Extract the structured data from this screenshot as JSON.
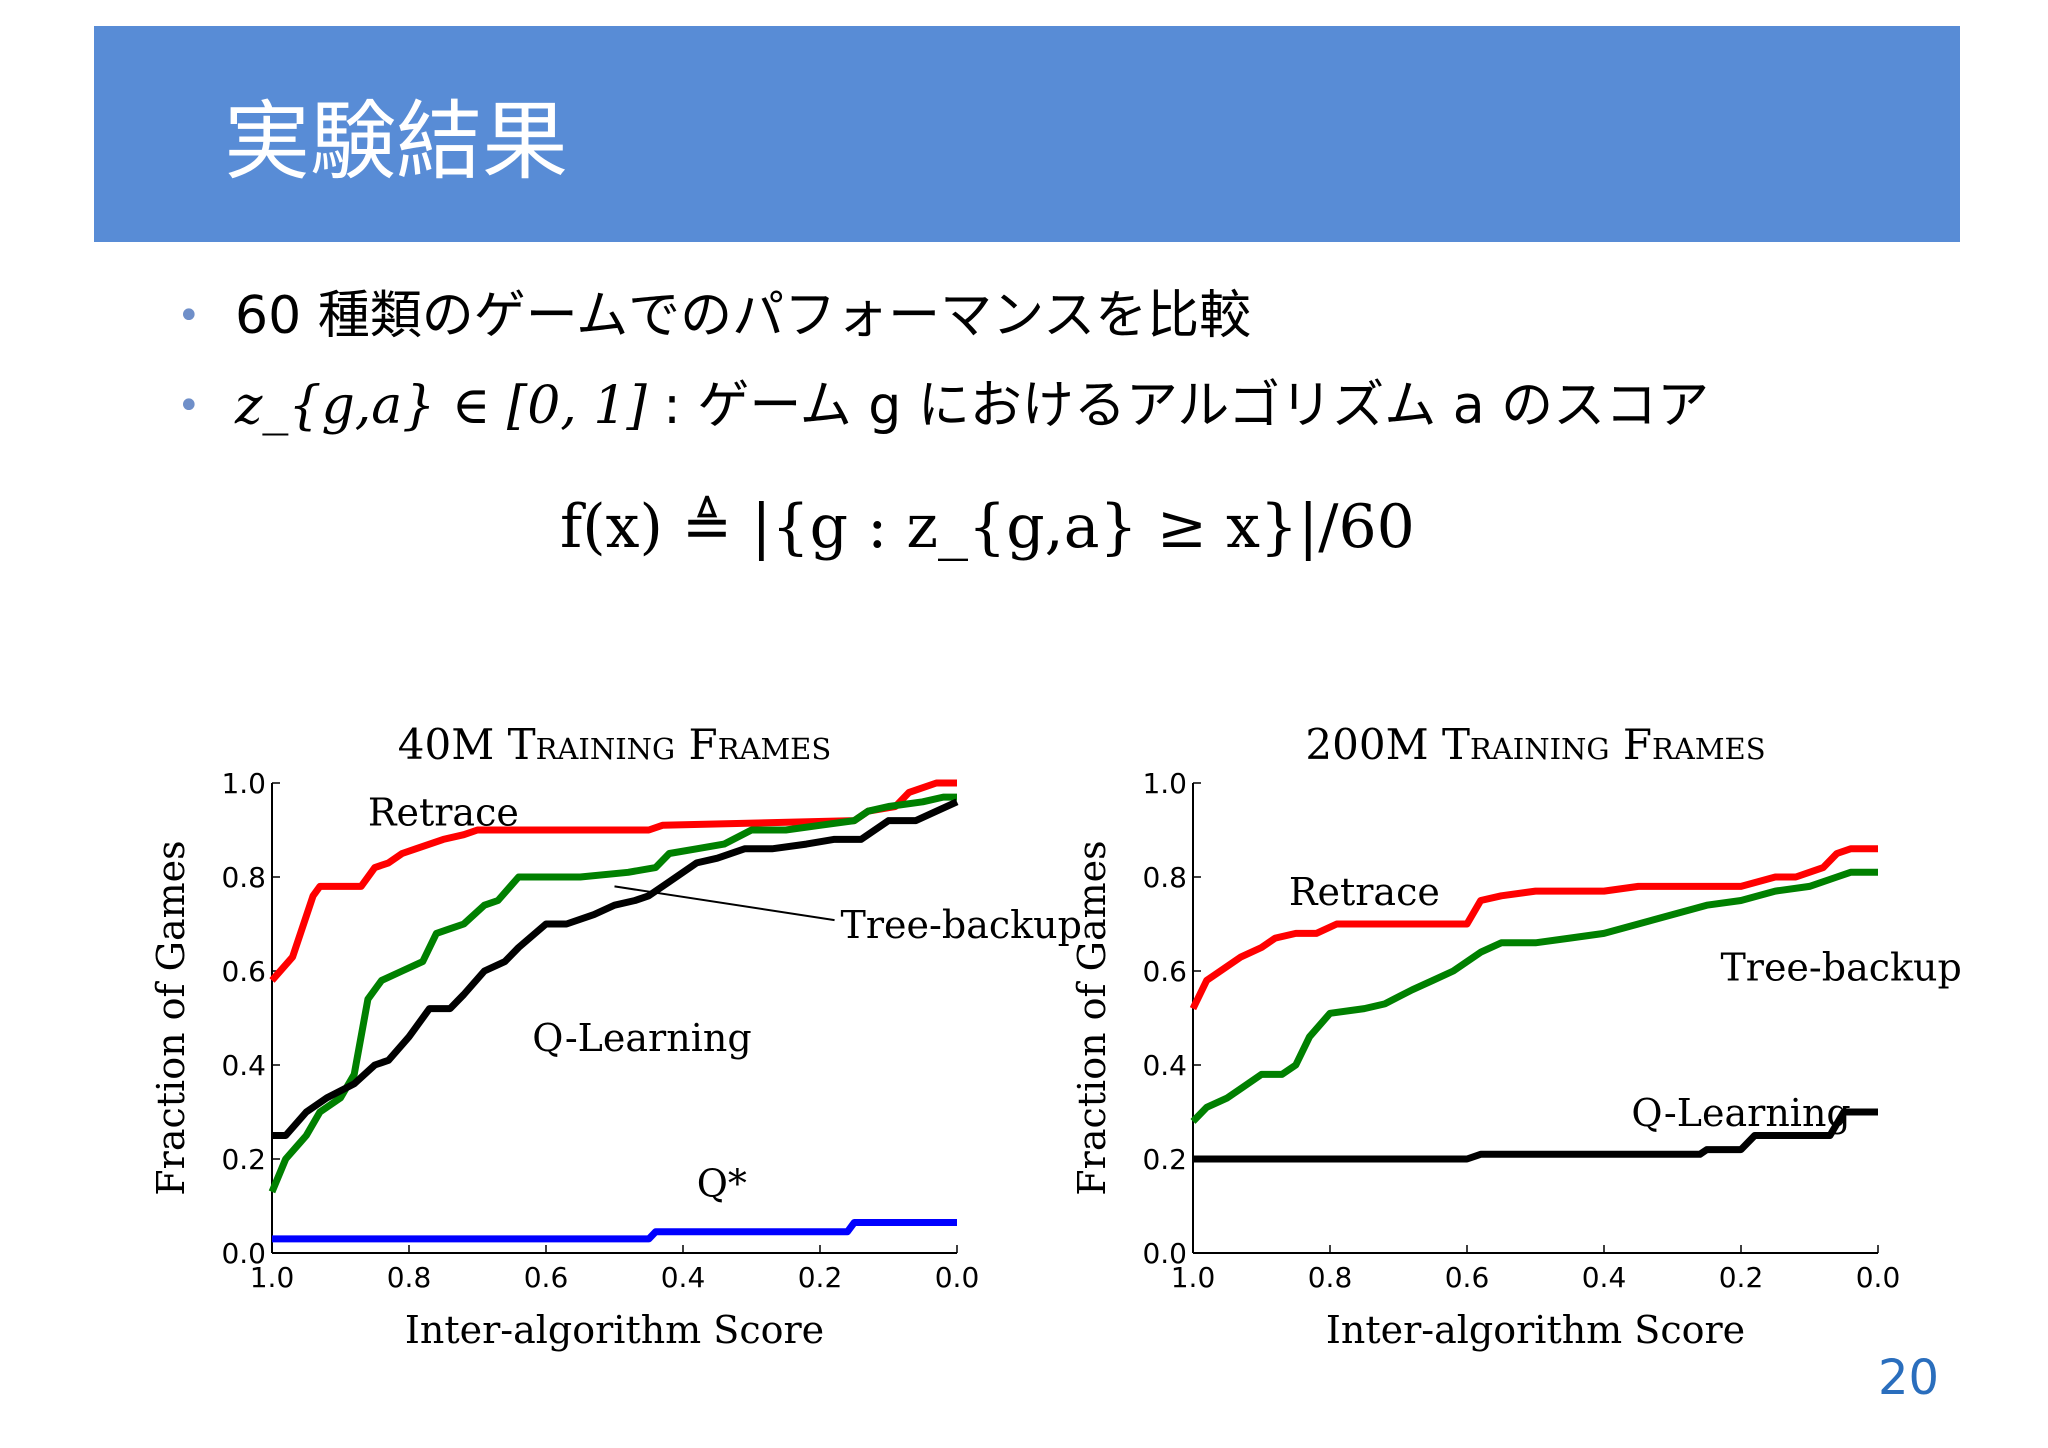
{
  "slide": {
    "title": "実験結果",
    "bullets": [
      {
        "text": "60 種類のゲームでのパフォーマンスを比較"
      },
      {
        "math": "z_{g,a} ∈ [0, 1]",
        "text": " : ゲーム g におけるアルゴリズム a のスコア"
      }
    ],
    "formula": "f(x) ≜ |{g : z_{g,a} ≥ x}|/60",
    "page_number": "20",
    "colors": {
      "header": "#588cd6",
      "page_number": "#2a6ebd",
      "bullet": "#6f8fc9"
    }
  },
  "chart_data": [
    {
      "type": "line",
      "title": "40M Training Frames",
      "xlabel": "Inter-algorithm Score",
      "ylabel": "Fraction of Games",
      "xlim": [
        1.0,
        0.0
      ],
      "ylim": [
        0.0,
        1.0
      ],
      "xticks": [
        "1.0",
        "0.8",
        "0.6",
        "0.4",
        "0.2",
        "0.0"
      ],
      "yticks": [
        "0.0",
        "0.2",
        "0.4",
        "0.6",
        "0.8",
        "1.0"
      ],
      "grid": false,
      "series": [
        {
          "name": "Retrace",
          "color": "#ff0000",
          "x": [
            1.0,
            0.97,
            0.94,
            0.93,
            0.87,
            0.85,
            0.83,
            0.81,
            0.79,
            0.75,
            0.72,
            0.7,
            0.45,
            0.43,
            0.15,
            0.13,
            0.09,
            0.07,
            0.03,
            0.0
          ],
          "y": [
            0.58,
            0.63,
            0.76,
            0.78,
            0.78,
            0.82,
            0.83,
            0.85,
            0.86,
            0.88,
            0.89,
            0.9,
            0.9,
            0.91,
            0.92,
            0.94,
            0.95,
            0.98,
            1.0,
            1.0
          ]
        },
        {
          "name": "Tree-backup",
          "color": "#008000",
          "x": [
            1.0,
            0.98,
            0.95,
            0.93,
            0.9,
            0.88,
            0.86,
            0.84,
            0.81,
            0.78,
            0.76,
            0.74,
            0.72,
            0.69,
            0.67,
            0.64,
            0.6,
            0.55,
            0.48,
            0.44,
            0.42,
            0.38,
            0.34,
            0.3,
            0.25,
            0.2,
            0.15,
            0.13,
            0.1,
            0.05,
            0.02,
            0.0
          ],
          "y": [
            0.13,
            0.2,
            0.25,
            0.3,
            0.33,
            0.38,
            0.54,
            0.58,
            0.6,
            0.62,
            0.68,
            0.69,
            0.7,
            0.74,
            0.75,
            0.8,
            0.8,
            0.8,
            0.81,
            0.82,
            0.85,
            0.86,
            0.87,
            0.9,
            0.9,
            0.91,
            0.92,
            0.94,
            0.95,
            0.96,
            0.97,
            0.97
          ]
        },
        {
          "name": "Q-Learning",
          "color": "#000000",
          "x": [
            1.0,
            0.98,
            0.95,
            0.92,
            0.88,
            0.85,
            0.83,
            0.8,
            0.77,
            0.74,
            0.72,
            0.69,
            0.66,
            0.64,
            0.6,
            0.57,
            0.53,
            0.5,
            0.47,
            0.45,
            0.42,
            0.38,
            0.35,
            0.31,
            0.27,
            0.22,
            0.18,
            0.14,
            0.1,
            0.06,
            0.03,
            0.0
          ],
          "y": [
            0.25,
            0.25,
            0.3,
            0.33,
            0.36,
            0.4,
            0.41,
            0.46,
            0.52,
            0.52,
            0.55,
            0.6,
            0.62,
            0.65,
            0.7,
            0.7,
            0.72,
            0.74,
            0.75,
            0.76,
            0.79,
            0.83,
            0.84,
            0.86,
            0.86,
            0.87,
            0.88,
            0.88,
            0.92,
            0.92,
            0.94,
            0.96
          ]
        },
        {
          "name": "Q*",
          "color": "#0000ff",
          "x": [
            1.0,
            0.45,
            0.44,
            0.16,
            0.15,
            0.0
          ],
          "y": [
            0.03,
            0.03,
            0.045,
            0.045,
            0.065,
            0.065
          ]
        }
      ],
      "annotations": [
        {
          "text": "Retrace",
          "x": 0.86,
          "y": 0.91
        },
        {
          "text": "Tree-backup",
          "x": 0.17,
          "y": 0.67,
          "arrow_to": [
            0.5,
            0.78
          ]
        },
        {
          "text": "Q-Learning",
          "x": 0.62,
          "y": 0.43
        },
        {
          "text": "Q*",
          "x": 0.38,
          "y": 0.12
        }
      ]
    },
    {
      "type": "line",
      "title": "200M Training Frames",
      "xlabel": "Inter-algorithm Score",
      "ylabel": "Fraction of Games",
      "xlim": [
        1.0,
        0.0
      ],
      "ylim": [
        0.0,
        1.0
      ],
      "xticks": [
        "1.0",
        "0.8",
        "0.6",
        "0.4",
        "0.2",
        "0.0"
      ],
      "yticks": [
        "0.0",
        "0.2",
        "0.4",
        "0.6",
        "0.8",
        "1.0"
      ],
      "grid": false,
      "series": [
        {
          "name": "Retrace",
          "color": "#ff0000",
          "x": [
            1.0,
            0.98,
            0.96,
            0.93,
            0.9,
            0.88,
            0.85,
            0.82,
            0.79,
            0.75,
            0.72,
            0.65,
            0.6,
            0.58,
            0.55,
            0.5,
            0.4,
            0.35,
            0.3,
            0.2,
            0.15,
            0.12,
            0.08,
            0.06,
            0.04,
            0.0
          ],
          "y": [
            0.52,
            0.58,
            0.6,
            0.63,
            0.65,
            0.67,
            0.68,
            0.68,
            0.7,
            0.7,
            0.7,
            0.7,
            0.7,
            0.75,
            0.76,
            0.77,
            0.77,
            0.78,
            0.78,
            0.78,
            0.8,
            0.8,
            0.82,
            0.85,
            0.86,
            0.86
          ]
        },
        {
          "name": "Tree-backup",
          "color": "#008000",
          "x": [
            1.0,
            0.98,
            0.95,
            0.93,
            0.9,
            0.87,
            0.85,
            0.83,
            0.8,
            0.75,
            0.72,
            0.68,
            0.65,
            0.62,
            0.6,
            0.58,
            0.55,
            0.5,
            0.45,
            0.4,
            0.35,
            0.3,
            0.25,
            0.2,
            0.15,
            0.1,
            0.06,
            0.04,
            0.0
          ],
          "y": [
            0.28,
            0.31,
            0.33,
            0.35,
            0.38,
            0.38,
            0.4,
            0.46,
            0.51,
            0.52,
            0.53,
            0.56,
            0.58,
            0.6,
            0.62,
            0.64,
            0.66,
            0.66,
            0.67,
            0.68,
            0.7,
            0.72,
            0.74,
            0.75,
            0.77,
            0.78,
            0.8,
            0.81,
            0.81
          ]
        },
        {
          "name": "Q-Learning",
          "color": "#000000",
          "x": [
            1.0,
            0.6,
            0.58,
            0.26,
            0.25,
            0.2,
            0.18,
            0.07,
            0.05,
            0.0
          ],
          "y": [
            0.2,
            0.2,
            0.21,
            0.21,
            0.22,
            0.22,
            0.25,
            0.25,
            0.3,
            0.3
          ]
        }
      ],
      "annotations": [
        {
          "text": "Retrace",
          "x": 0.86,
          "y": 0.74
        },
        {
          "text": "Tree-backup",
          "x": 0.23,
          "y": 0.58
        },
        {
          "text": "Q-Learning",
          "x": 0.36,
          "y": 0.27
        }
      ]
    }
  ]
}
